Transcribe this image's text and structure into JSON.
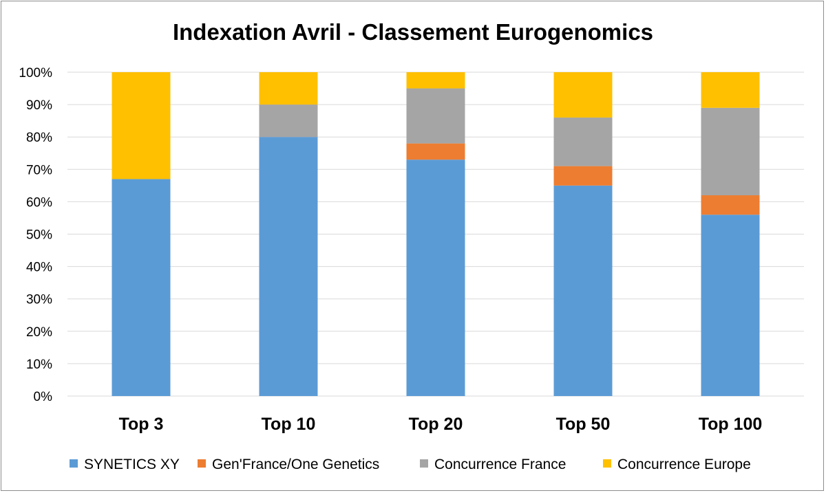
{
  "chart_data": {
    "type": "bar",
    "stacked": true,
    "title": "Indexation Avril - Classement Eurogenomics",
    "xlabel": "",
    "ylabel": "",
    "categories": [
      "Top 3",
      "Top 10",
      "Top 20",
      "Top 50",
      "Top 100"
    ],
    "y_ticks": [
      "0%",
      "10%",
      "20%",
      "30%",
      "40%",
      "50%",
      "60%",
      "70%",
      "80%",
      "90%",
      "100%"
    ],
    "ylim": [
      0,
      100
    ],
    "grid": true,
    "legend_position": "bottom",
    "series": [
      {
        "name": "SYNETICS XY",
        "color": "#5b9bd5",
        "values": [
          67,
          80,
          73,
          65,
          56
        ]
      },
      {
        "name": "Gen'France/One Genetics",
        "color": "#ed7d31",
        "values": [
          0,
          0,
          5,
          6,
          6
        ]
      },
      {
        "name": "Concurrence France",
        "color": "#a5a5a5",
        "values": [
          0,
          10,
          17,
          15,
          27
        ]
      },
      {
        "name": "Concurrence Europe",
        "color": "#ffc000",
        "values": [
          33,
          10,
          5,
          14,
          11
        ]
      }
    ]
  }
}
